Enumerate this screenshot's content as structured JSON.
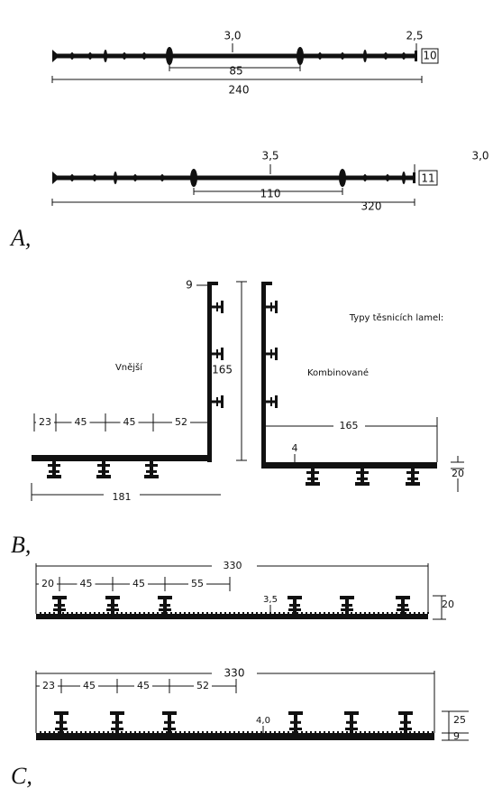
{
  "section_a": {
    "label": "A,",
    "profile_1": {
      "thickness": "3,0",
      "end_thickness": "2,5",
      "end_height": "10",
      "center_width": "85",
      "total_width": "240"
    },
    "profile_2": {
      "thickness": "3,5",
      "end_thickness": "3,0",
      "end_height": "11",
      "center_width": "110",
      "total_width": "320"
    }
  },
  "section_b": {
    "label": "B,",
    "legend_title": "Typy těsnicích lamel:",
    "outer": {
      "name": "Vnější",
      "flange": "9",
      "height": "165",
      "spacing": [
        "23",
        "45",
        "45",
        "52"
      ],
      "total_width": "181"
    },
    "combined": {
      "name": "Kombinované",
      "width": "165",
      "thickness": "4",
      "height": "20"
    }
  },
  "section_c": {
    "label": "C,",
    "profile_1": {
      "total_width": "330",
      "spacing": [
        "20",
        "45",
        "45",
        "55"
      ],
      "thickness": "3,5",
      "height": "20"
    },
    "profile_2": {
      "total_width": "330",
      "spacing": [
        "23",
        "45",
        "45",
        "52"
      ],
      "thickness": "4,0",
      "rib_height": "25",
      "base_height": "9"
    }
  }
}
